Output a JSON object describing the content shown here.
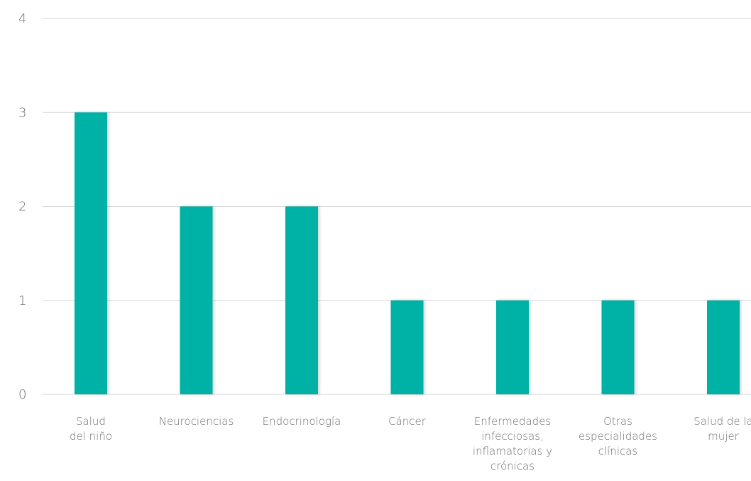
{
  "chart_data": {
    "type": "bar",
    "title": "",
    "xlabel": "",
    "ylabel": "",
    "categories": [
      "Salud del niño",
      "Neurociencias",
      "Endocrinología",
      "Cáncer",
      "Enfermedades infecciosas, inflamatorias y crónicas",
      "Otras especialidades clínicas",
      "Salud de la mujer"
    ],
    "category_label_lines": [
      [
        "Salud",
        "del niño"
      ],
      [
        "Neurociencias"
      ],
      [
        "Endocrinología"
      ],
      [
        "Cáncer"
      ],
      [
        "Enfermedades",
        "infecciosas,",
        "inflamatorias y",
        "crónicas"
      ],
      [
        "Otras",
        "especialidades",
        "clínicas"
      ],
      [
        "Salud de la",
        "mujer"
      ]
    ],
    "values": [
      3,
      2,
      2,
      1,
      1,
      1,
      1
    ],
    "ylim": [
      0,
      4
    ],
    "yticks": [
      "0",
      "1",
      "2",
      "3",
      "4"
    ],
    "grid": true,
    "legend": "none",
    "bar_color": "#00b1a5",
    "grid_color": "#d6d6d6",
    "text_color": "#6f6f6f"
  }
}
